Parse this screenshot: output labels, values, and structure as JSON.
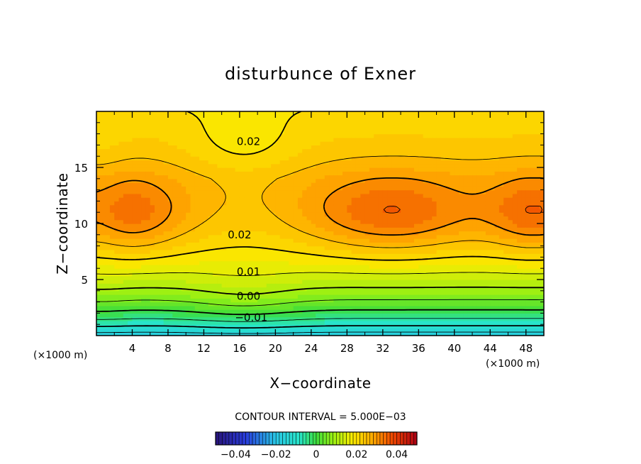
{
  "chart_data": {
    "type": "heatmap",
    "title": "disturbunce of Exner",
    "xlabel": "X−coordinate",
    "ylabel": "Z−coordinate",
    "x_unit_left": "(×1000 m)",
    "x_unit_right": "(×1000 m)",
    "xlim": [
      0,
      50
    ],
    "ylim": [
      0,
      20
    ],
    "x_ticks": [
      "4",
      "8",
      "12",
      "16",
      "20",
      "24",
      "28",
      "32",
      "36",
      "40",
      "44",
      "48"
    ],
    "y_ticks": [
      "5",
      "10",
      "15"
    ],
    "contour_interval_text": "CONTOUR INTERVAL = 5.000E−03",
    "contour_labels": [
      {
        "text": "0.02",
        "x": 17.0,
        "z": 17.3
      },
      {
        "text": "0.02",
        "x": 16.0,
        "z": 9.0
      },
      {
        "text": "0.01",
        "x": 17.0,
        "z": 5.7
      },
      {
        "text": "0.00",
        "x": 17.0,
        "z": 3.5
      },
      {
        "text": "−0.01",
        "x": 17.3,
        "z": 1.6
      }
    ],
    "colorbar": {
      "range": [
        -0.05,
        0.05
      ],
      "tick_labels": [
        "−0.04",
        "−0.02",
        "0",
        "0.02",
        "0.04"
      ],
      "tick_values": [
        -0.04,
        -0.02,
        0,
        0.02,
        0.04
      ]
    },
    "field_description_values": {
      "surface_min": -0.018,
      "upper_max": 0.036
    }
  }
}
